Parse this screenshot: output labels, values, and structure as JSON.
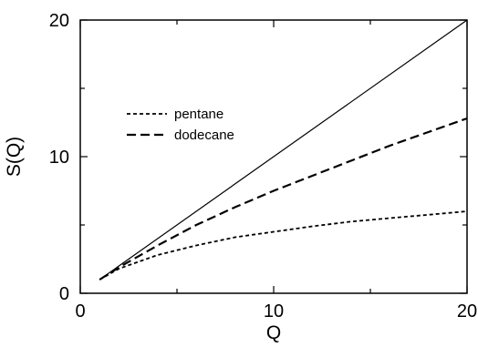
{
  "chart_data": {
    "type": "line",
    "title": "",
    "xlabel": "Q",
    "ylabel": "S(Q)",
    "xlim": [
      0,
      20
    ],
    "ylim": [
      0,
      20
    ],
    "xticks": [
      0,
      10,
      20
    ],
    "yticks": [
      0,
      10,
      20
    ],
    "x_tick_labels": [
      "0",
      "10",
      "20"
    ],
    "y_tick_labels": [
      "0",
      "10",
      "20"
    ],
    "grid": false,
    "legend_position": "upper-left",
    "series": [
      {
        "name": "",
        "style": "solid",
        "color": "#000000",
        "x": [
          1,
          20
        ],
        "y": [
          1,
          20
        ]
      },
      {
        "name": "pentane",
        "style": "short-dash",
        "color": "#000000",
        "x": [
          1,
          2,
          4,
          6,
          8,
          10,
          12,
          14,
          16,
          18,
          20
        ],
        "y": [
          1.0,
          1.8,
          2.8,
          3.5,
          4.1,
          4.5,
          4.9,
          5.25,
          5.5,
          5.75,
          6.0
        ]
      },
      {
        "name": "dodecane",
        "style": "long-dash",
        "color": "#000000",
        "x": [
          1,
          2,
          4,
          6,
          8,
          10,
          12,
          14,
          16,
          18,
          20
        ],
        "y": [
          1.0,
          1.9,
          3.5,
          5.0,
          6.3,
          7.5,
          8.6,
          9.7,
          10.8,
          11.8,
          12.8
        ]
      }
    ]
  }
}
